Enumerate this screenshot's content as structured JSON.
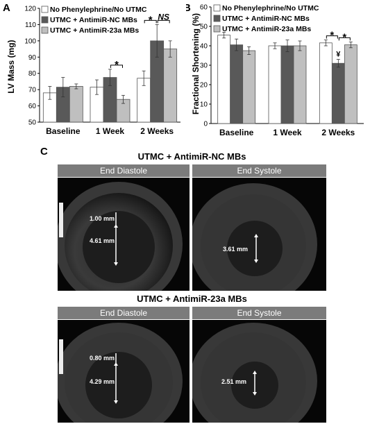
{
  "chart_data": [
    {
      "panel": "A",
      "type": "bar",
      "ylabel": "LV Mass (mg)",
      "ylim": [
        50,
        120
      ],
      "yticks": [
        50,
        60,
        70,
        80,
        90,
        100,
        110,
        120
      ],
      "categories": [
        "Baseline",
        "1 Week",
        "2 Weeks"
      ],
      "legend": [
        "No Phenylephrine/No UTMC",
        "UTMC + AntimiR-NC MBs",
        "UTMC + AntimiR-23a MBs"
      ],
      "legend_position": "top-left",
      "series": [
        {
          "name": "No Phenylephrine/No UTMC",
          "values": [
            68,
            71.5,
            77
          ],
          "errors": [
            4,
            4.5,
            4.5
          ],
          "color": "#ffffff"
        },
        {
          "name": "UTMC + AntimiR-NC MBs",
          "values": [
            71.5,
            77.5,
            100
          ],
          "errors": [
            6,
            5,
            10
          ],
          "color": "#595959"
        },
        {
          "name": "UTMC + AntimiR-23a MBs",
          "values": [
            72,
            64,
            95
          ],
          "errors": [
            1.5,
            2.5,
            5
          ],
          "color": "#bfbfbf"
        }
      ],
      "annotations": [
        {
          "text": "*",
          "category": 1,
          "from": 1,
          "to": 2
        },
        {
          "text": "*",
          "category": 2,
          "from": 0,
          "to": 1
        },
        {
          "text": "NS",
          "category": 2,
          "from": 1,
          "to": 2
        }
      ]
    },
    {
      "panel": "B",
      "type": "bar",
      "ylabel": "Fractional Shortening (%)",
      "ylim": [
        0,
        60
      ],
      "yticks": [
        0,
        10,
        20,
        30,
        40,
        50,
        60
      ],
      "categories": [
        "Baseline",
        "1 Week",
        "2 Weeks"
      ],
      "legend": [
        "No Phenylephrine/No UTMC",
        "UTMC + AntimiR-NC MBs",
        "UTMC + AntimiR-23a MBs"
      ],
      "legend_position": "top-left",
      "series": [
        {
          "name": "No Phenylephrine/No UTMC",
          "values": [
            45.5,
            40,
            41.5
          ],
          "errors": [
            1.5,
            1.5,
            1.5
          ],
          "color": "#ffffff"
        },
        {
          "name": "UTMC + AntimiR-NC MBs",
          "values": [
            40.5,
            40,
            31
          ],
          "errors": [
            3,
            3,
            2
          ],
          "color": "#595959"
        },
        {
          "name": "UTMC + AntimiR-23a MBs",
          "values": [
            37.5,
            40,
            40.5
          ],
          "errors": [
            2,
            2.5,
            1.5
          ],
          "color": "#bfbfbf"
        }
      ],
      "annotations": [
        {
          "text": "*",
          "category": 2,
          "from": 0,
          "to": 1
        },
        {
          "text": "*",
          "category": 2,
          "from": 1,
          "to": 2
        },
        {
          "text": "¥",
          "category": 2,
          "bar": 1
        }
      ]
    }
  ],
  "panel_c": {
    "letter": "C",
    "groups": [
      {
        "title": "UTMC + AntimiR-NC MBs",
        "diastole_label": "End Diastole",
        "systole_label": "End Systole",
        "diastole_wall": "1.00 mm",
        "diastole_cavity": "4.61 mm",
        "systole_cavity": "3.61 mm"
      },
      {
        "title": "UTMC + AntimiR-23a MBs",
        "diastole_label": "End Diastole",
        "systole_label": "End Systole",
        "diastole_wall": "0.80 mm",
        "diastole_cavity": "4.29 mm",
        "systole_cavity": "2.51 mm"
      }
    ]
  },
  "panel_labels": {
    "a": "A",
    "b": "B"
  }
}
